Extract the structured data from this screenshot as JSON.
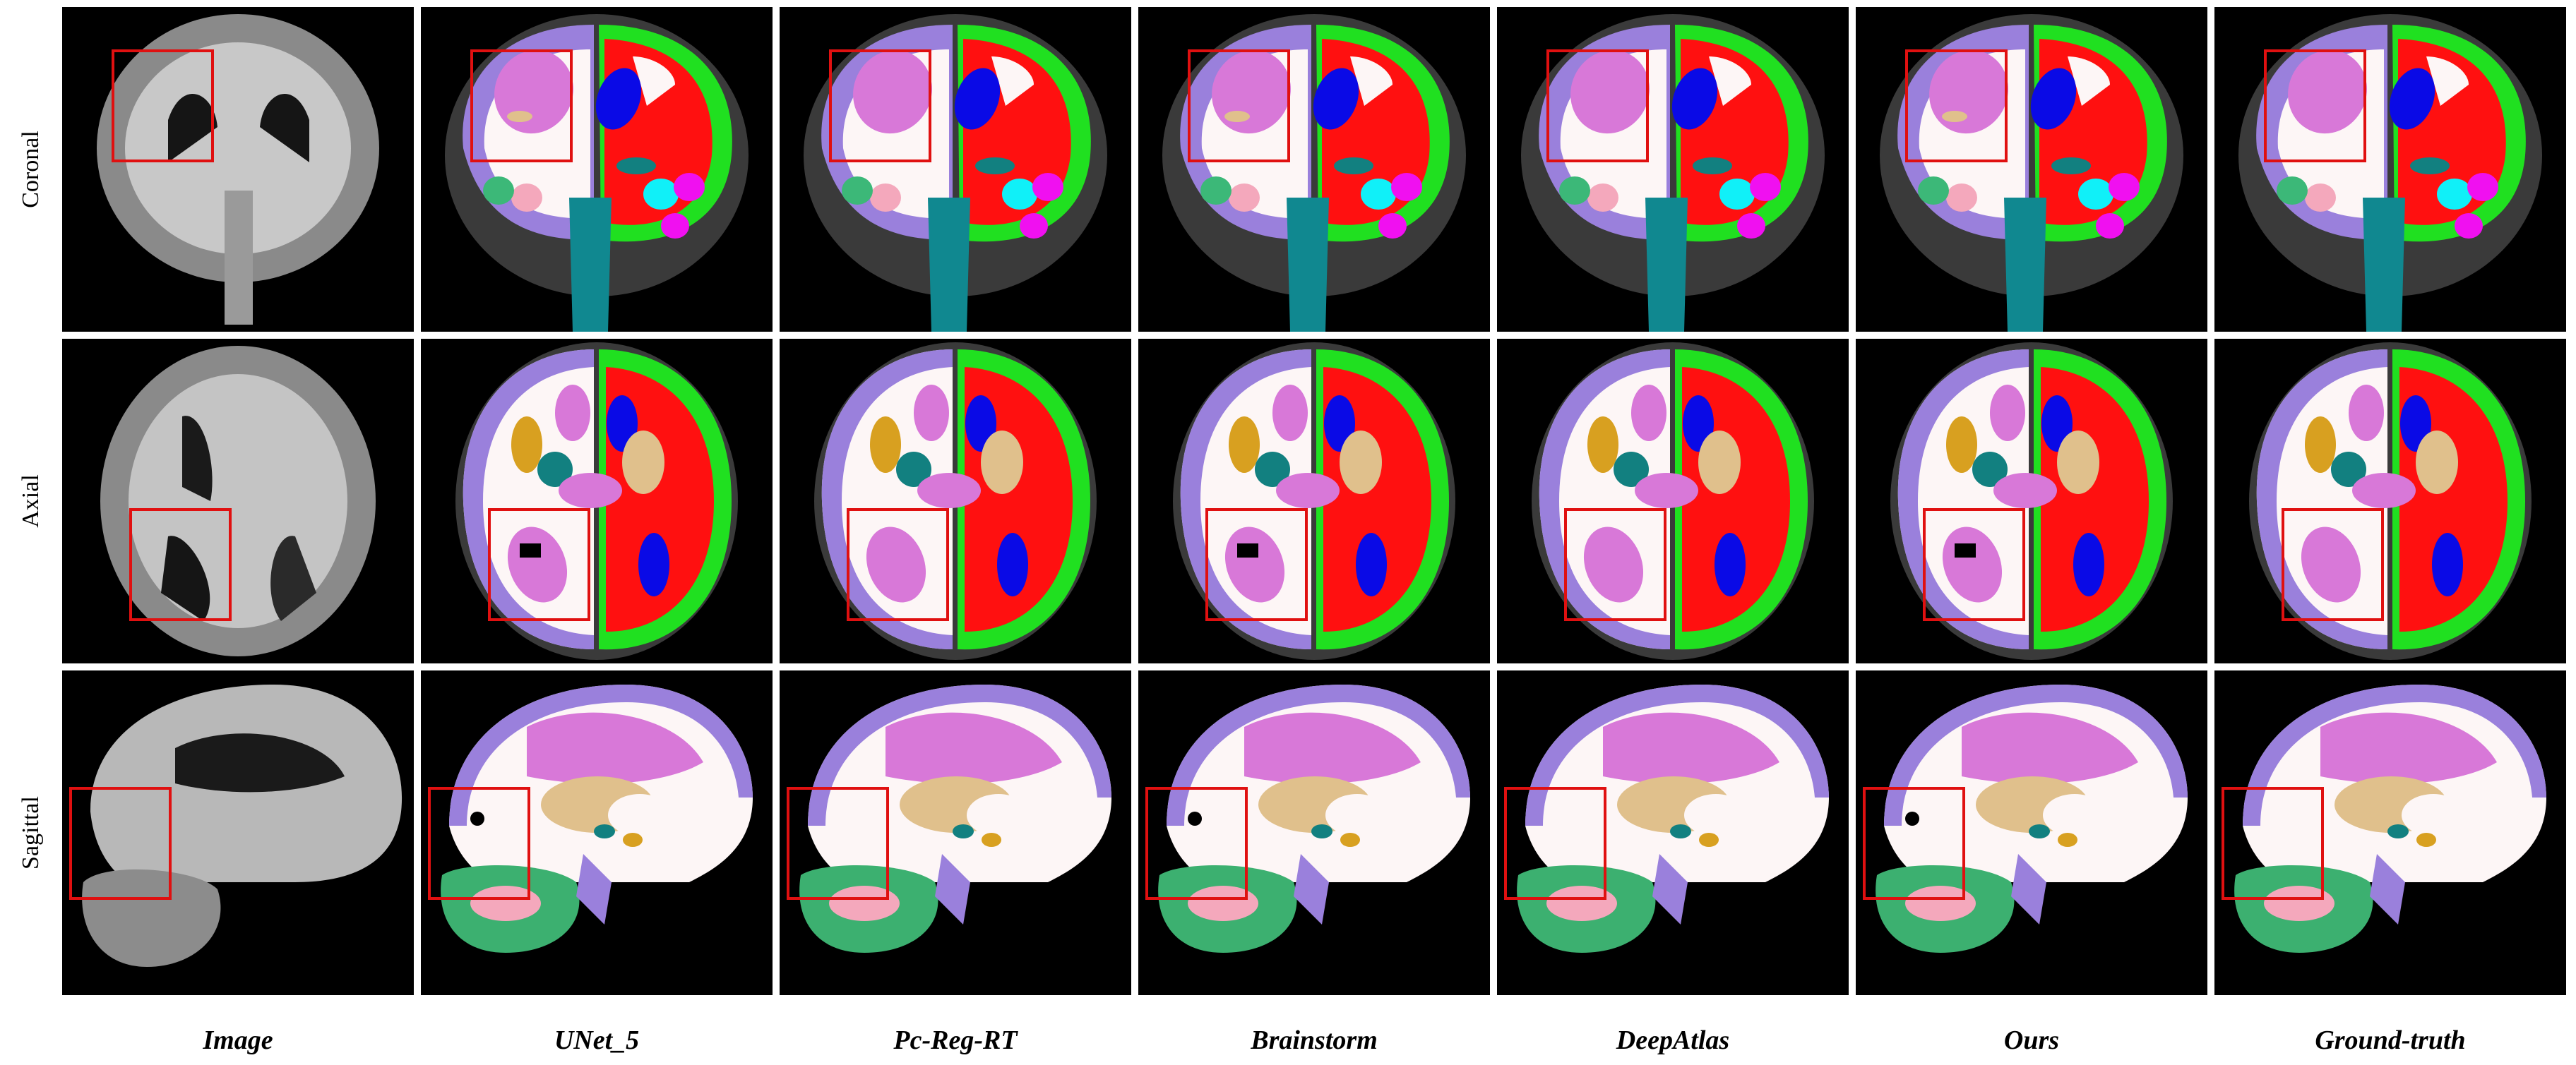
{
  "rows": [
    {
      "key": "coronal",
      "label": "Coronal"
    },
    {
      "key": "axial",
      "label": "Axial"
    },
    {
      "key": "sagittal",
      "label": "Sagittal"
    }
  ],
  "columns": [
    {
      "key": "image",
      "label": "Image",
      "kind": "mri"
    },
    {
      "key": "unet5",
      "label": "UNet_5",
      "kind": "seg"
    },
    {
      "key": "pcregrt",
      "label": "Pc-Reg-RT",
      "kind": "seg"
    },
    {
      "key": "brainstorm",
      "label": "Brainstorm",
      "kind": "seg"
    },
    {
      "key": "deepatlas",
      "label": "DeepAtlas",
      "kind": "seg"
    },
    {
      "key": "ours",
      "label": "Ours",
      "kind": "seg"
    },
    {
      "key": "groundtruth",
      "label": "Ground-truth",
      "kind": "seg"
    }
  ],
  "colors": {
    "background": "#000000",
    "highlight_box": "#e01010",
    "white_matter": "#fdf6f6",
    "cortex": "#9a80dc",
    "right_cortex": "#ff1010",
    "right_outline": "#20e020",
    "ventricle_pink": "#d878d8",
    "caudate_blue": "#0a0ae6",
    "thalamus_teal": "#128080",
    "brainstem_teal": "#108890",
    "hippocampus_green": "#3cb878",
    "amygdala_pink": "#f4a8bc",
    "cyan": "#10f0f8",
    "magenta": "#f010f0",
    "putamen_gold": "#d8a020",
    "pallidum_tan": "#e0c08c",
    "cerebellum_green": "#3cb070",
    "mri_gray": "#8a8a8a"
  }
}
